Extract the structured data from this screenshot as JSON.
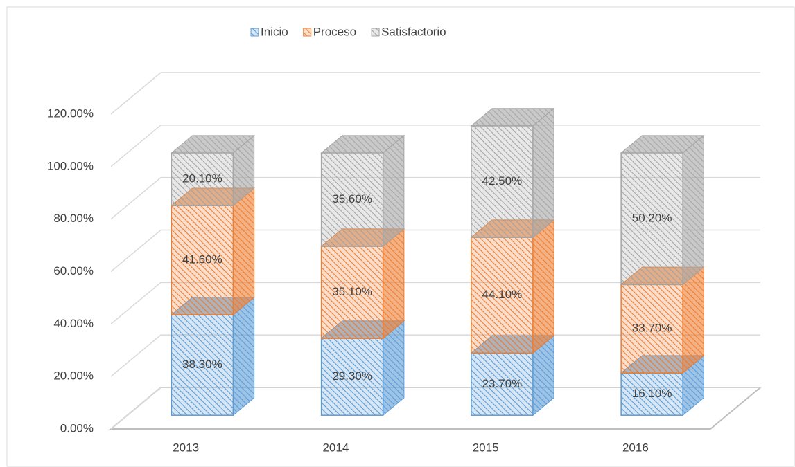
{
  "chart_data": {
    "type": "bar3d_stacked",
    "categories": [
      "2013",
      "2014",
      "2015",
      "2016"
    ],
    "series": [
      {
        "name": "Inicio",
        "color": "#5b9bd5",
        "values": [
          38.3,
          29.3,
          23.7,
          16.1
        ],
        "value_labels": [
          "38.30%",
          "29.30%",
          "23.70%",
          "16.10%"
        ]
      },
      {
        "name": "Proceso",
        "color": "#ed7d31",
        "values": [
          41.6,
          35.1,
          44.1,
          33.7
        ],
        "value_labels": [
          "41.60%",
          "35.10%",
          "44.10%",
          "33.70%"
        ]
      },
      {
        "name": "Satisfactorio",
        "color": "#a5a5a5",
        "values": [
          20.1,
          35.6,
          42.5,
          50.2
        ],
        "value_labels": [
          "20.10%",
          "35.60%",
          "42.50%",
          "50.20%"
        ]
      }
    ],
    "ylim": [
      0,
      120
    ],
    "yticks": [
      {
        "value": 0,
        "label": "0.00%"
      },
      {
        "value": 20,
        "label": "20.00%"
      },
      {
        "value": 40,
        "label": "40.00%"
      },
      {
        "value": 60,
        "label": "60.00%"
      },
      {
        "value": 80,
        "label": "80.00%"
      },
      {
        "value": 100,
        "label": "100.00%"
      },
      {
        "value": 120,
        "label": "120.00%"
      }
    ],
    "grid": true,
    "legend": "top"
  }
}
